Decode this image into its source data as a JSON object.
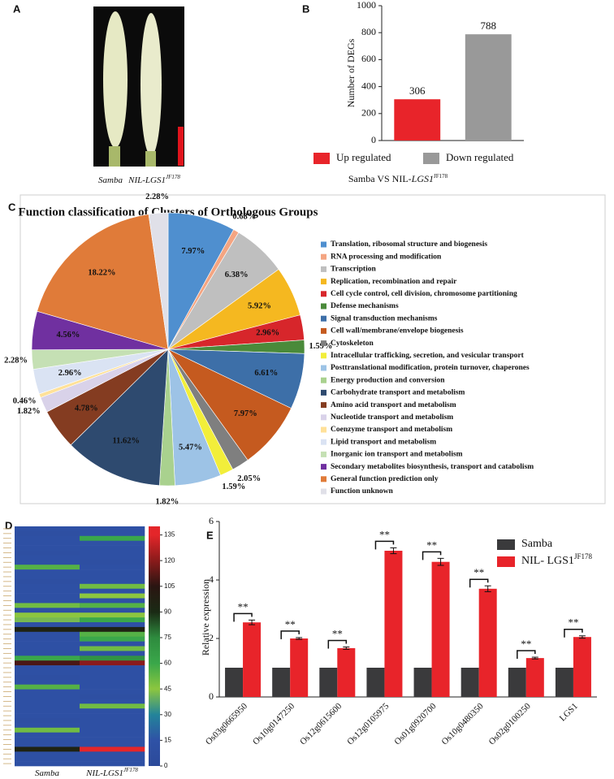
{
  "panel_labels": [
    "A",
    "B",
    "C",
    "D",
    "E"
  ],
  "photo": {
    "labels": [
      [
        "Samba"
      ],
      [
        "NIL-LGS1",
        "JF178"
      ]
    ]
  },
  "chart_data": [
    {
      "type": "bar",
      "ylabel": "Number of DEGs",
      "categories": [
        "Up regulated",
        "Down regulated"
      ],
      "values": [
        306,
        788
      ],
      "colors": [
        "#e8242a",
        "#999999"
      ],
      "ylim": [
        0,
        1000
      ],
      "yticks": [
        0,
        200,
        400,
        600,
        800,
        1000
      ],
      "xlabel": [
        "Samba VS NIL-",
        "LGS1",
        "JF178"
      ]
    },
    {
      "type": "pie",
      "title": "Function classification of Clusters of Orthologous Groups",
      "categories": [
        "Translation, ribosomal structure and biogenesis",
        "RNA processing and modification",
        "Transcription",
        "Replication, recombination and repair",
        "Cell cycle control, cell division, chromosome partitioning",
        "Defense mechanisms",
        "Signal transduction mechanisms",
        "Cell wall/membrane/envelope biogenesis",
        "Cytoskeleton",
        "Intracellular trafficking, secretion, and vesicular transport",
        "Posttranslational modification, protein turnover, chaperones",
        "Energy production and conversion",
        "Carbohydrate transport and metabolism",
        "Amino acid transport and metabolism",
        "Nucleotide transport and metabolism",
        "Coenzyme transport and metabolism",
        "Lipid transport and metabolism",
        "Inorganic ion transport and metabolism",
        "Secondary metabolites biosynthesis, transport and catabolism",
        "General function prediction only",
        "Function unknown"
      ],
      "values": [
        7.97,
        0.68,
        6.38,
        5.92,
        2.96,
        1.59,
        6.61,
        7.97,
        2.05,
        1.59,
        5.47,
        1.82,
        11.62,
        4.78,
        1.82,
        0.46,
        2.96,
        2.28,
        4.56,
        18.22,
        2.28
      ],
      "value_labels": [
        "7.97%",
        "0.68%",
        "6.38%",
        "5.92%",
        "2.96%",
        "1.59%",
        "6.61%",
        "7.97%",
        "2.05%",
        "1.59%",
        "5.47%",
        "1.82%",
        "11.62%",
        "4.78%",
        "1.82%",
        "0.46%",
        "2.96%",
        "2.28%",
        "4.56%",
        "18.22%",
        "2.28%"
      ],
      "colors": [
        "#4f8fcf",
        "#f4a582",
        "#bfbfbf",
        "#f5b820",
        "#d7262b",
        "#4a8a3a",
        "#3d6fa8",
        "#c55a1f",
        "#7f7f7f",
        "#f2ee3a",
        "#9dc3e6",
        "#a9d18e",
        "#2e4a6f",
        "#843c21",
        "#d9d2e9",
        "#ffe199",
        "#dae3f3",
        "#c5e0b4",
        "#7030a0",
        "#e07b39",
        "#e0e0e8"
      ]
    },
    {
      "type": "heatmap",
      "xlabels": [
        [
          "Samba"
        ],
        [
          "NIL-LGS1",
          "JF178"
        ]
      ],
      "z": [
        [
          12,
          12
        ],
        [
          10,
          12
        ],
        [
          12,
          60
        ],
        [
          12,
          14
        ],
        [
          12,
          12
        ],
        [
          10,
          12
        ],
        [
          12,
          12
        ],
        [
          12,
          10
        ],
        [
          55,
          12
        ],
        [
          12,
          12
        ],
        [
          12,
          12
        ],
        [
          10,
          12
        ],
        [
          12,
          50
        ],
        [
          12,
          12
        ],
        [
          12,
          45
        ],
        [
          12,
          12
        ],
        [
          50,
          55
        ],
        [
          12,
          12
        ],
        [
          45,
          45
        ],
        [
          42,
          60
        ],
        [
          12,
          12
        ],
        [
          95,
          95
        ],
        [
          12,
          55
        ],
        [
          12,
          60
        ],
        [
          12,
          12
        ],
        [
          12,
          50
        ],
        [
          12,
          12
        ],
        [
          60,
          70
        ],
        [
          110,
          120
        ],
        [
          12,
          12
        ],
        [
          12,
          12
        ],
        [
          10,
          12
        ],
        [
          12,
          12
        ],
        [
          55,
          12
        ],
        [
          12,
          12
        ],
        [
          12,
          10
        ],
        [
          12,
          12
        ],
        [
          12,
          50
        ],
        [
          12,
          12
        ],
        [
          12,
          12
        ],
        [
          10,
          12
        ],
        [
          12,
          12
        ],
        [
          50,
          12
        ],
        [
          12,
          12
        ],
        [
          12,
          12
        ],
        [
          12,
          12
        ],
        [
          95,
          135
        ],
        [
          12,
          12
        ],
        [
          12,
          12
        ],
        [
          12,
          12
        ]
      ],
      "zlim": [
        0,
        140
      ],
      "zticks": [
        0,
        15,
        30,
        45,
        60,
        75,
        90,
        105,
        120,
        135
      ],
      "colors": [
        "#2c4a9a",
        "#2f52a6",
        "#23849a",
        "#8cc63f",
        "#3aa74a",
        "#2e8b3e",
        "#1a2a14",
        "#2a1512",
        "#8a1b1b",
        "#e4262a"
      ]
    },
    {
      "type": "bar",
      "ylabel": "Relative expression",
      "categories": [
        "Os03g0665950",
        "Os10g0147250",
        "Os12g0615600",
        "Os12g0105975",
        "Os01g0920700",
        "Os10g0480350",
        "Os02g0100250",
        "LGS1"
      ],
      "series": [
        {
          "name": "Samba",
          "color": "#3a3a3c",
          "values": [
            1,
            1,
            1,
            1,
            1,
            1,
            1,
            1
          ]
        },
        {
          "name": "NIL- LGS1",
          "name_sup": "JF178",
          "color": "#e8242a",
          "values": [
            2.55,
            2.0,
            1.67,
            5.0,
            4.62,
            3.7,
            1.33,
            2.05
          ],
          "errors": [
            0.08,
            0.03,
            0.04,
            0.1,
            0.12,
            0.1,
            0.03,
            0.04
          ]
        }
      ],
      "annotations": [
        "**",
        "**",
        "**",
        "**",
        "**",
        "**",
        "**",
        "**"
      ],
      "ylim": [
        0,
        6
      ],
      "yticks": [
        0,
        2,
        4,
        6
      ]
    }
  ]
}
